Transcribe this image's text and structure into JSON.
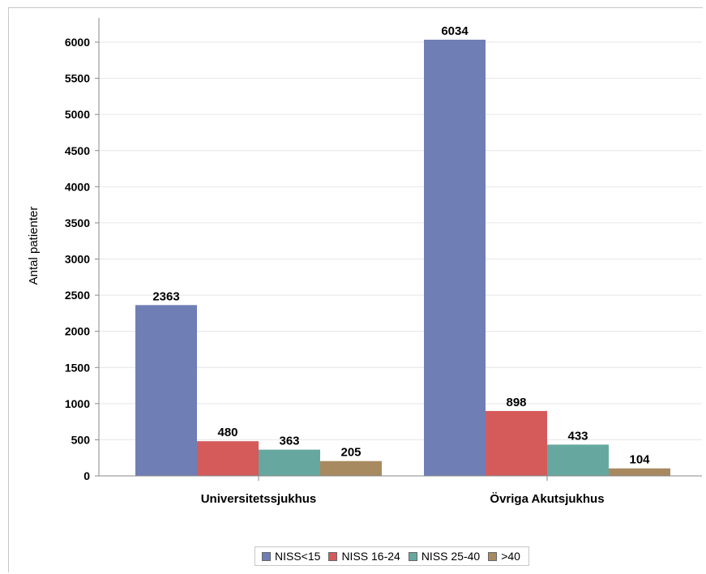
{
  "chart_data": {
    "type": "bar",
    "categories": [
      "Universitetssjukhus",
      "Övriga Akutsjukhus"
    ],
    "series": [
      {
        "name": "NISS<15",
        "color": "#6f7fb5",
        "values": [
          2363,
          6034
        ]
      },
      {
        "name": "NISS 16-24",
        "color": "#d55b5b",
        "values": [
          480,
          898
        ]
      },
      {
        "name": "NISS 25-40",
        "color": "#66a8a0",
        "values": [
          363,
          433
        ]
      },
      {
        "name": ">40",
        "color": "#a88a60",
        "values": [
          205,
          104
        ]
      }
    ],
    "ylabel": "Antal patienter",
    "xlabel": "",
    "ylim": [
      0,
      6200
    ],
    "yticks": [
      0,
      500,
      1000,
      1500,
      2000,
      2500,
      3000,
      3500,
      4000,
      4500,
      5000,
      5500,
      6000
    ],
    "grid": true,
    "legend_position": "bottom-center",
    "data_labels": true
  }
}
